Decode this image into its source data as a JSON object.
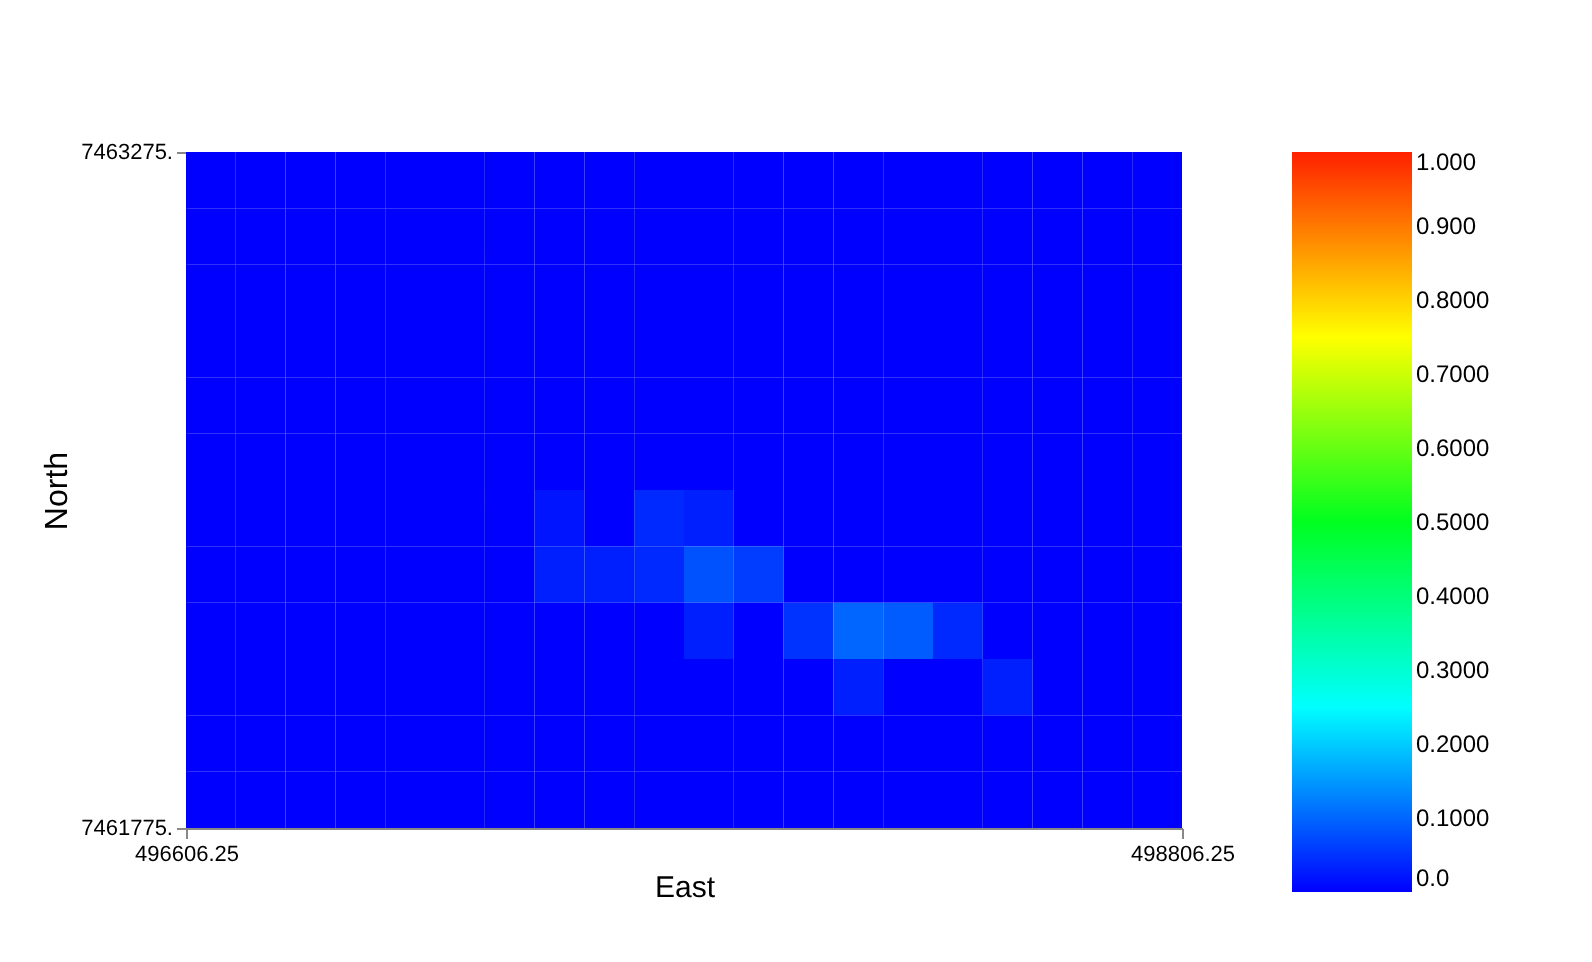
{
  "chart_data": {
    "type": "heatmap",
    "xlabel": "East",
    "ylabel": "North",
    "xlim": [
      496606.25,
      498806.25
    ],
    "xticks": [
      496606.25,
      498806.25
    ],
    "ylim": [
      7461775,
      7463275
    ],
    "yticks": [
      {
        "value": 7461775,
        "label": "7461775."
      },
      {
        "value": 7463275,
        "label": "7463275."
      }
    ],
    "clim": [
      0,
      1
    ],
    "cticks": [
      {
        "value": 0,
        "label": "0.0"
      },
      {
        "value": 0.1,
        "label": "0.1000"
      },
      {
        "value": 0.2,
        "label": "0.2000"
      },
      {
        "value": 0.3,
        "label": "0.3000"
      },
      {
        "value": 0.4,
        "label": "0.4000"
      },
      {
        "value": 0.5,
        "label": "0.5000"
      },
      {
        "value": 0.6,
        "label": "0.6000"
      },
      {
        "value": 0.7,
        "label": "0.7000"
      },
      {
        "value": 0.8,
        "label": "0.8000"
      },
      {
        "value": 0.9,
        "label": "0.900"
      },
      {
        "value": 1,
        "label": "1.000"
      }
    ],
    "colors": [
      "#0000ff",
      "#00ffff",
      "#00ff20",
      "#ffff00",
      "#ff2000"
    ],
    "grid": false,
    "cells": [
      [
        0,
        0,
        0,
        0,
        0,
        0,
        0,
        0,
        0,
        0,
        0,
        0,
        0,
        0,
        0,
        0,
        0,
        0,
        0,
        0
      ],
      [
        0,
        0,
        0,
        0,
        0,
        0,
        0,
        0,
        0,
        0,
        0,
        0,
        0,
        0,
        0,
        0,
        0,
        0,
        0,
        0
      ],
      [
        0,
        0,
        0,
        0,
        0,
        0,
        0,
        0,
        0,
        0,
        0,
        0,
        0,
        0,
        0,
        0,
        0,
        0,
        0,
        0
      ],
      [
        0,
        0,
        0,
        0,
        0,
        0,
        0,
        0,
        0,
        0,
        0,
        0,
        0,
        0,
        0,
        0,
        0,
        0,
        0,
        0
      ],
      [
        0,
        0,
        0,
        0,
        0,
        0,
        0,
        0,
        0,
        0,
        0,
        0,
        0,
        0,
        0,
        0,
        0,
        0,
        0,
        0
      ],
      [
        0,
        0,
        0,
        0,
        0,
        0,
        0,
        0,
        0,
        0,
        0,
        0,
        0,
        0,
        0,
        0,
        0,
        0,
        0,
        0
      ],
      [
        0,
        0,
        0,
        0,
        0,
        0,
        0,
        0.02,
        0,
        0.04,
        0.03,
        0,
        0,
        0,
        0,
        0,
        0,
        0,
        0,
        0
      ],
      [
        0,
        0,
        0,
        0,
        0,
        0,
        0,
        0.03,
        0.03,
        0.04,
        0.08,
        0.06,
        0,
        0,
        0,
        0,
        0,
        0,
        0,
        0
      ],
      [
        0,
        0,
        0,
        0,
        0,
        0,
        0,
        0,
        0,
        0,
        0.03,
        0,
        0.05,
        0.1,
        0.09,
        0.04,
        0,
        0,
        0,
        0
      ],
      [
        0,
        0,
        0,
        0,
        0,
        0,
        0,
        0,
        0,
        0,
        0,
        0,
        0,
        0.03,
        0,
        0,
        0.03,
        0,
        0,
        0
      ],
      [
        0,
        0,
        0,
        0,
        0,
        0,
        0,
        0,
        0,
        0,
        0,
        0,
        0,
        0,
        0,
        0,
        0,
        0,
        0,
        0
      ],
      [
        0,
        0,
        0,
        0,
        0,
        0,
        0,
        0,
        0,
        0,
        0,
        0,
        0,
        0,
        0,
        0,
        0,
        0,
        0,
        0
      ]
    ]
  }
}
